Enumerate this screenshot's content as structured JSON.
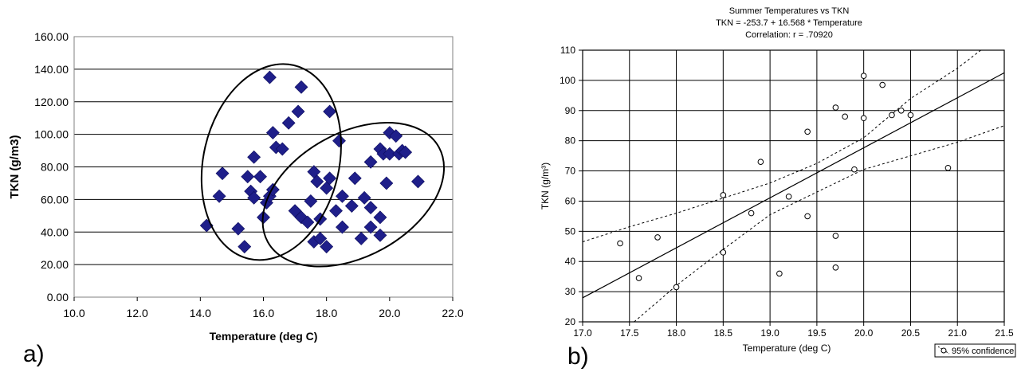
{
  "panel_labels": [
    "a)",
    "b)"
  ],
  "chart_data": [
    {
      "type": "scatter",
      "title": "",
      "xlabel": "Temperature (deg C)",
      "ylabel": "TKN (g/m3)",
      "xlim": [
        10,
        22
      ],
      "ylim": [
        0,
        160
      ],
      "x_ticks": [
        10,
        12,
        14,
        16,
        18,
        20,
        22
      ],
      "x_tick_labels": [
        "10.0",
        "12.0",
        "14.0",
        "16.0",
        "18.0",
        "20.0",
        "22.0"
      ],
      "y_ticks": [
        0,
        20,
        40,
        60,
        80,
        100,
        120,
        140,
        160
      ],
      "y_tick_labels": [
        "0.00",
        "20.00",
        "40.00",
        "60.00",
        "80.00",
        "100.00",
        "120.00",
        "140.00",
        "160.00"
      ],
      "grid": "horizontal",
      "marker": "diamond",
      "marker_color": "#1f1f8a",
      "points": [
        [
          14.2,
          44
        ],
        [
          14.6,
          62
        ],
        [
          14.7,
          76
        ],
        [
          15.2,
          42
        ],
        [
          15.4,
          31
        ],
        [
          15.5,
          74
        ],
        [
          15.6,
          65
        ],
        [
          15.7,
          86
        ],
        [
          15.7,
          61
        ],
        [
          15.9,
          74
        ],
        [
          16.0,
          49
        ],
        [
          16.1,
          58
        ],
        [
          16.2,
          62
        ],
        [
          16.3,
          66
        ],
        [
          16.2,
          135
        ],
        [
          16.3,
          101
        ],
        [
          16.4,
          92
        ],
        [
          16.6,
          91
        ],
        [
          16.8,
          107
        ],
        [
          17.0,
          53
        ],
        [
          17.1,
          114
        ],
        [
          17.2,
          129
        ],
        [
          17.2,
          49
        ],
        [
          17.4,
          46
        ],
        [
          17.5,
          59
        ],
        [
          17.6,
          77
        ],
        [
          17.6,
          34
        ],
        [
          17.7,
          71
        ],
        [
          17.8,
          48
        ],
        [
          17.8,
          36
        ],
        [
          18.0,
          67
        ],
        [
          18.0,
          31
        ],
        [
          18.1,
          73
        ],
        [
          18.1,
          114
        ],
        [
          18.3,
          53
        ],
        [
          18.4,
          96
        ],
        [
          18.5,
          62
        ],
        [
          18.5,
          43
        ],
        [
          18.8,
          56
        ],
        [
          18.9,
          73
        ],
        [
          19.1,
          36
        ],
        [
          19.2,
          61
        ],
        [
          19.4,
          43
        ],
        [
          19.4,
          55
        ],
        [
          19.4,
          83
        ],
        [
          19.7,
          91
        ],
        [
          19.7,
          49
        ],
        [
          19.7,
          38
        ],
        [
          19.8,
          88
        ],
        [
          19.9,
          70
        ],
        [
          20.0,
          101
        ],
        [
          20.0,
          88
        ],
        [
          20.2,
          99
        ],
        [
          20.3,
          88
        ],
        [
          20.4,
          90
        ],
        [
          20.5,
          89
        ],
        [
          20.9,
          71
        ]
      ],
      "ellipses": [
        {
          "cx": 16.25,
          "cy": 83,
          "rx_deg": 2.15,
          "ry_deg": 61,
          "rotate_deg": 13
        },
        {
          "cx": 18.85,
          "cy": 63,
          "rx_deg": 3.1,
          "ry_deg": 38,
          "rotate_deg": -29
        }
      ]
    },
    {
      "type": "scatter",
      "title_lines": [
        "Summer Temperatures vs TKN",
        "TKN       = -253.7 + 16.568 * Temperature",
        "Correlation: r = .70920"
      ],
      "xlabel": "Temperature (deg C)",
      "ylabel": "TKN  (g/m³)",
      "xlim": [
        17.0,
        21.5
      ],
      "ylim": [
        20,
        110
      ],
      "x_ticks": [
        17.0,
        17.5,
        18.0,
        18.5,
        19.0,
        19.5,
        20.0,
        20.5,
        21.0,
        21.5
      ],
      "x_tick_labels": [
        "17.0",
        "17.5",
        "18.0",
        "18.5",
        "19.0",
        "19.5",
        "20.0",
        "20.5",
        "21.0",
        "21.5"
      ],
      "y_ticks": [
        20,
        30,
        40,
        50,
        60,
        70,
        80,
        90,
        100,
        110
      ],
      "y_tick_labels": [
        "20",
        "30",
        "40",
        "50",
        "60",
        "70",
        "80",
        "90",
        "100",
        "110"
      ],
      "grid": "both",
      "marker": "open-circle",
      "regression": {
        "intercept": -253.7,
        "slope": 16.568
      },
      "confidence_band": {
        "upper": [
          [
            17.0,
            46.5
          ],
          [
            17.5,
            51.5
          ],
          [
            18.0,
            56
          ],
          [
            18.5,
            61
          ],
          [
            19.0,
            66
          ],
          [
            19.5,
            72.5
          ],
          [
            20.0,
            81
          ],
          [
            20.5,
            94
          ],
          [
            21.0,
            104
          ],
          [
            21.25,
            110
          ]
        ],
        "lower": [
          [
            17.55,
            20
          ],
          [
            18.0,
            32
          ],
          [
            18.5,
            44
          ],
          [
            19.0,
            55.5
          ],
          [
            19.5,
            63
          ],
          [
            20.0,
            70.5
          ],
          [
            20.5,
            75
          ],
          [
            21.0,
            79.5
          ],
          [
            21.5,
            85
          ]
        ]
      },
      "legend": {
        "label": "95% confidence",
        "position": "bottom-right"
      },
      "points": [
        [
          17.4,
          46
        ],
        [
          17.6,
          34.5
        ],
        [
          17.8,
          48
        ],
        [
          18.0,
          31.5
        ],
        [
          18.5,
          62
        ],
        [
          18.5,
          43
        ],
        [
          18.8,
          56
        ],
        [
          18.9,
          73
        ],
        [
          19.1,
          36
        ],
        [
          19.2,
          61.5
        ],
        [
          19.4,
          83
        ],
        [
          19.4,
          55
        ],
        [
          19.7,
          91
        ],
        [
          19.7,
          48.5
        ],
        [
          19.7,
          38
        ],
        [
          19.8,
          88
        ],
        [
          19.9,
          70.5
        ],
        [
          20.0,
          101.5
        ],
        [
          20.0,
          87.5
        ],
        [
          20.2,
          98.5
        ],
        [
          20.3,
          88.5
        ],
        [
          20.4,
          90
        ],
        [
          20.5,
          88.5
        ],
        [
          20.9,
          71
        ]
      ]
    }
  ]
}
